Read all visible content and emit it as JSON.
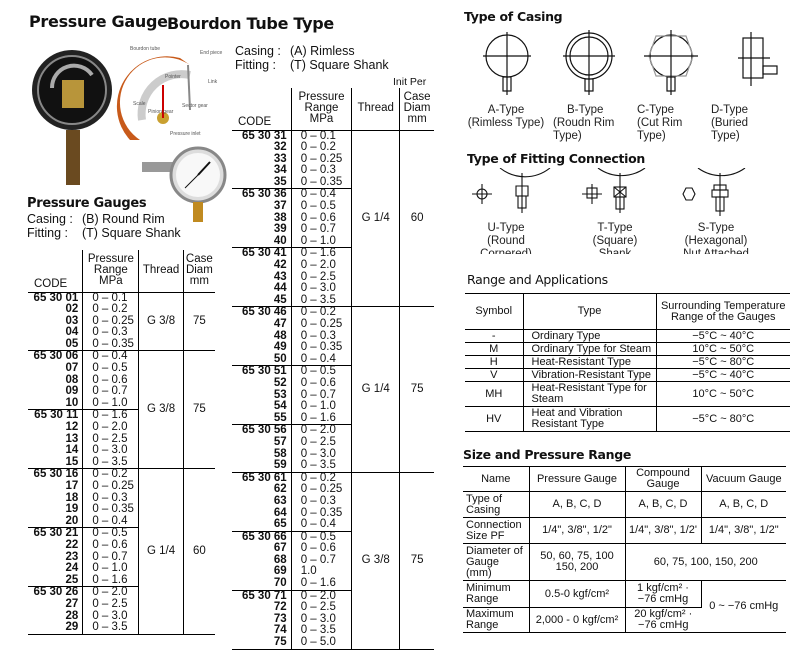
{
  "title": {
    "main": "Pressure Gauge",
    "sub": "Bourdon Tube Type"
  },
  "illustration": {
    "labels": [
      "Bourdon tube",
      "End piece",
      "Pointer",
      "Link",
      "Scale",
      "Sector gear",
      "Pinion gear",
      "Pressure inlet"
    ]
  },
  "left": {
    "heading": "Pressure Gauges",
    "casing_label": "Casing :",
    "casing_value": "(B) Round Rim",
    "fitting_label": "Fitting :",
    "fitting_value": "(T) Square Shank",
    "headers": {
      "code": "CODE",
      "range": "Pressure Range MPa",
      "thread": "Thread",
      "diam": "Case Diam mm"
    },
    "sections": [
      {
        "thread": "G 3/8",
        "diam": "75",
        "groups": [
          [
            [
              "65 30 01",
              "0 – 0.1"
            ],
            [
              "02",
              "0 – 0.2"
            ],
            [
              "03",
              "0 – 0.25"
            ],
            [
              "04",
              "0 – 0.3"
            ],
            [
              "05",
              "0 – 0.35"
            ]
          ]
        ]
      },
      {
        "thread": "G 3/8",
        "diam": "75",
        "groups": [
          [
            [
              "65 30 06",
              "0 – 0.4"
            ],
            [
              "07",
              "0 – 0.5"
            ],
            [
              "08",
              "0 – 0.6"
            ],
            [
              "09",
              "0 – 0.7"
            ],
            [
              "10",
              "0 – 1.0"
            ]
          ],
          [
            [
              "65 30 11",
              "0 – 1.6"
            ],
            [
              "12",
              "0 – 2.0"
            ],
            [
              "13",
              "0 – 2.5"
            ],
            [
              "14",
              "0 – 3.0"
            ],
            [
              "15",
              "0 – 3.5"
            ]
          ]
        ]
      },
      {
        "thread": "G 1/4",
        "diam": "60",
        "groups": [
          [
            [
              "65 30 16",
              "0 – 0.2"
            ],
            [
              "17",
              "0 – 0.25"
            ],
            [
              "18",
              "0 – 0.3"
            ],
            [
              "19",
              "0 – 0.35"
            ],
            [
              "20",
              "0 – 0.4"
            ]
          ],
          [
            [
              "65 30 21",
              "0 – 0.5"
            ],
            [
              "22",
              "0 – 0.6"
            ],
            [
              "23",
              "0 – 0.7"
            ],
            [
              "24",
              "0 – 1.0"
            ],
            [
              "25",
              "0 – 1.6"
            ]
          ],
          [
            [
              "65 30 26",
              "0 – 2.0"
            ],
            [
              "27",
              "0 – 2.5"
            ],
            [
              "28",
              "0 – 3.0"
            ],
            [
              "29",
              "0 – 3.5"
            ]
          ]
        ]
      }
    ]
  },
  "middle": {
    "casing_label": "Casing :",
    "casing_value": "(A) Rimless",
    "fitting_label": "Fitting :",
    "fitting_value": "(T) Square Shank",
    "unit_note": "Init Per",
    "headers": {
      "code": "CODE",
      "range": "Pressure Range MPa",
      "thread": "Thread",
      "diam": "Case Diam mm"
    },
    "sections": [
      {
        "thread": "G 1/4",
        "diam": "60",
        "groups": [
          [
            [
              "65 30 31",
              "0 – 0.1"
            ],
            [
              "32",
              "0 – 0.2"
            ],
            [
              "33",
              "0 – 0.25"
            ],
            [
              "34",
              "0 – 0.3"
            ],
            [
              "35",
              "0 – 0.35"
            ]
          ],
          [
            [
              "65 30 36",
              "0 – 0.4"
            ],
            [
              "37",
              "0 – 0.5"
            ],
            [
              "38",
              "0 – 0.6"
            ],
            [
              "39",
              "0 – 0.7"
            ],
            [
              "40",
              "0 – 1.0"
            ]
          ],
          [
            [
              "65 30 41",
              "0 – 1.6"
            ],
            [
              "42",
              "0 – 2.0"
            ],
            [
              "43",
              "0 – 2.5"
            ],
            [
              "44",
              "0 – 3.0"
            ],
            [
              "45",
              "0 – 3.5"
            ]
          ]
        ]
      },
      {
        "thread": "G 1/4",
        "diam": "75",
        "groups": [
          [
            [
              "65 30 46",
              "0 – 0.2"
            ],
            [
              "47",
              "0 – 0.25"
            ],
            [
              "48",
              "0 – 0.3"
            ],
            [
              "49",
              "0 – 0.35"
            ],
            [
              "50",
              "0 – 0.4"
            ]
          ],
          [
            [
              "65 30 51",
              "0 – 0.5"
            ],
            [
              "52",
              "0 – 0.6"
            ],
            [
              "53",
              "0 – 0.7"
            ],
            [
              "54",
              "0 – 1.0"
            ],
            [
              "55",
              "0 – 1.6"
            ]
          ],
          [
            [
              "65 30 56",
              "0 – 2.0"
            ],
            [
              "57",
              "0 – 2.5"
            ],
            [
              "58",
              "0 – 3.0"
            ],
            [
              "59",
              "0 – 3.5"
            ]
          ]
        ]
      },
      {
        "thread": "G 3/8",
        "diam": "75",
        "groups": [
          [
            [
              "65 30 61",
              "0 – 0.2"
            ],
            [
              "62",
              "0 – 0.25"
            ],
            [
              "63",
              "0 – 0.3"
            ],
            [
              "64",
              "0 – 0.35"
            ],
            [
              "65",
              "0 – 0.4"
            ]
          ],
          [
            [
              "65 30 66",
              "0 – 0.5"
            ],
            [
              "67",
              "0 – 0.6"
            ],
            [
              "68",
              "0 – 0.7"
            ],
            [
              "69",
              "1.0"
            ],
            [
              "70",
              "0 – 1.6"
            ]
          ],
          [
            [
              "65 30 71",
              "0 – 2.0"
            ],
            [
              "72",
              "0 – 2.5"
            ],
            [
              "73",
              "0 – 3.0"
            ],
            [
              "74",
              "0 – 3.5"
            ],
            [
              "75",
              "0 – 5.0"
            ]
          ]
        ]
      }
    ]
  },
  "casing_types": {
    "heading": "Type of Casing",
    "items": [
      {
        "name": "A-Type",
        "desc": "(Rimless Type)"
      },
      {
        "name": "B-Type",
        "desc": "(Roudn Rim Type)"
      },
      {
        "name": "C-Type",
        "desc": "(Cut Rim Type)"
      },
      {
        "name": "D-Type",
        "desc": "(Buried Type)"
      }
    ]
  },
  "fitting_types": {
    "heading": "Type of Fitting Connection",
    "items": [
      {
        "name": "U-Type",
        "desc": "(Round Cornered) Shank"
      },
      {
        "name": "T-Type",
        "desc": "(Square) Shank"
      },
      {
        "name": "S-Type",
        "desc": "(Hexagonal) Nut Attached"
      }
    ]
  },
  "range_apps": {
    "heading": "Range and Applications",
    "headers": [
      "Symbol",
      "Type",
      "Surrounding Temperature Range of the Gauges"
    ],
    "rows": [
      [
        "-",
        "Ordinary Type",
        "−5°C ~ 40°C"
      ],
      [
        "M",
        "Ordinary Type for Steam",
        "10°C ~ 50°C"
      ],
      [
        "H",
        "Heat-Resistant Type",
        "−5°C ~ 80°C"
      ],
      [
        "V",
        "Vibration-Resistant Type",
        "−5°C ~ 40°C"
      ],
      [
        "MH",
        "Heat-Resistant Type for Steam",
        "10°C ~ 50°C"
      ],
      [
        "HV",
        "Heat and Vibration Resistant Type",
        "−5°C ~ 80°C"
      ]
    ]
  },
  "size_range": {
    "heading": "Size and Pressure Range",
    "headers": [
      "Name",
      "Pressure Gauge",
      "Compound Gauge",
      "Vacuum Gauge"
    ],
    "rows": {
      "casing": {
        "label": "Type of Casing",
        "pressure": "A, B, C, D",
        "compound": "A, B, C, D",
        "vacuum": "A, B, C, D"
      },
      "connection": {
        "label": "Connection Size PF",
        "pressure": "1/4\", 3/8\", 1/2\"",
        "compound": "1/4\", 3/8\", 1/2'",
        "vacuum": "1/4\", 3/8\", 1/2\""
      },
      "diameter": {
        "label": "Diameter of Gauge (mm)",
        "pressure": "50, 60, 75, 100 150, 200",
        "compound_vacuum": "60, 75, 100, 150, 200"
      },
      "minimum": {
        "label": "Minimum Range",
        "pressure": "0.5-0 kgf/cm²",
        "compound": "1 kgf/cm² · −76 cmHg"
      },
      "maximum": {
        "label": "Maximum Range",
        "pressure": "2,000 - 0 kgf/cm²",
        "compound": "20 kgf/cm² · −76 cmHg"
      },
      "vacuum_range": "0 ~ −76 cmHg"
    }
  }
}
